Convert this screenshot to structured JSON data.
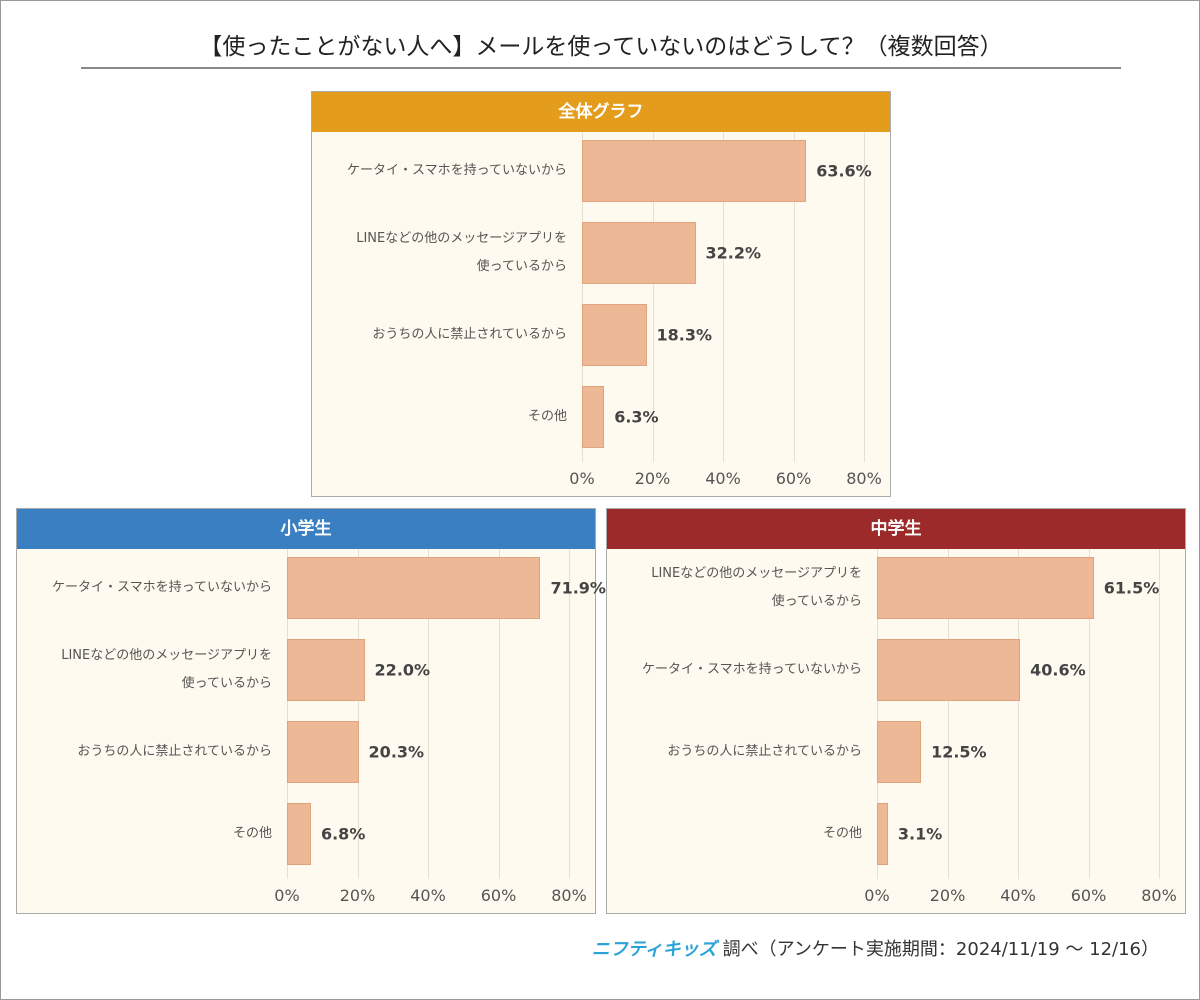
{
  "title": "【使ったことがない人へ】メールを使っていないのはどうして？（複数回答）",
  "footer": {
    "brand": "ニフティキッズ",
    "text": "調べ（アンケート実施期間：2024/11/19 ～ 12/16）"
  },
  "chart_data": [
    {
      "type": "bar",
      "orientation": "horizontal",
      "title": "全体グラフ",
      "header_color": "#e39c1b",
      "color": "#edb896",
      "categories": [
        "ケータイ・スマホを持っていないから",
        "LINEなどの他のメッセージアプリを\n使っているから",
        "おうちの人に禁止されているから",
        "その他"
      ],
      "values": [
        63.6,
        32.2,
        18.3,
        6.3
      ],
      "value_labels": [
        "63.6%",
        "32.2%",
        "18.3%",
        "6.3%"
      ],
      "xlim": [
        0,
        80
      ],
      "xticks": [
        {
          "value": 0,
          "label": "0%"
        },
        {
          "value": 20,
          "label": "20%"
        },
        {
          "value": 40,
          "label": "40%"
        },
        {
          "value": 60,
          "label": "60%"
        },
        {
          "value": 80,
          "label": "80%"
        }
      ],
      "grid": true
    },
    {
      "type": "bar",
      "orientation": "horizontal",
      "title": "小学生",
      "header_color": "#3a7fc2",
      "color": "#edb896",
      "categories": [
        "ケータイ・スマホを持っていないから",
        "LINEなどの他のメッセージアプリを\n使っているから",
        "おうちの人に禁止されているから",
        "その他"
      ],
      "values": [
        71.9,
        22.0,
        20.3,
        6.8
      ],
      "value_labels": [
        "71.9%",
        "22.0%",
        "20.3%",
        "6.8%"
      ],
      "xlim": [
        0,
        80
      ],
      "xticks": [
        {
          "value": 0,
          "label": "0%"
        },
        {
          "value": 20,
          "label": "20%"
        },
        {
          "value": 40,
          "label": "40%"
        },
        {
          "value": 60,
          "label": "60%"
        },
        {
          "value": 80,
          "label": "80%"
        }
      ],
      "grid": true
    },
    {
      "type": "bar",
      "orientation": "horizontal",
      "title": "中学生",
      "header_color": "#9c2a2a",
      "color": "#edb896",
      "categories": [
        "LINEなどの他のメッセージアプリを\n使っているから",
        "ケータイ・スマホを持っていないから",
        "おうちの人に禁止されているから",
        "その他"
      ],
      "values": [
        61.5,
        40.6,
        12.5,
        3.1
      ],
      "value_labels": [
        "61.5%",
        "40.6%",
        "12.5%",
        "3.1%"
      ],
      "xlim": [
        0,
        80
      ],
      "xticks": [
        {
          "value": 0,
          "label": "0%"
        },
        {
          "value": 20,
          "label": "20%"
        },
        {
          "value": 40,
          "label": "40%"
        },
        {
          "value": 60,
          "label": "60%"
        },
        {
          "value": 80,
          "label": "80%"
        }
      ],
      "grid": true
    }
  ]
}
